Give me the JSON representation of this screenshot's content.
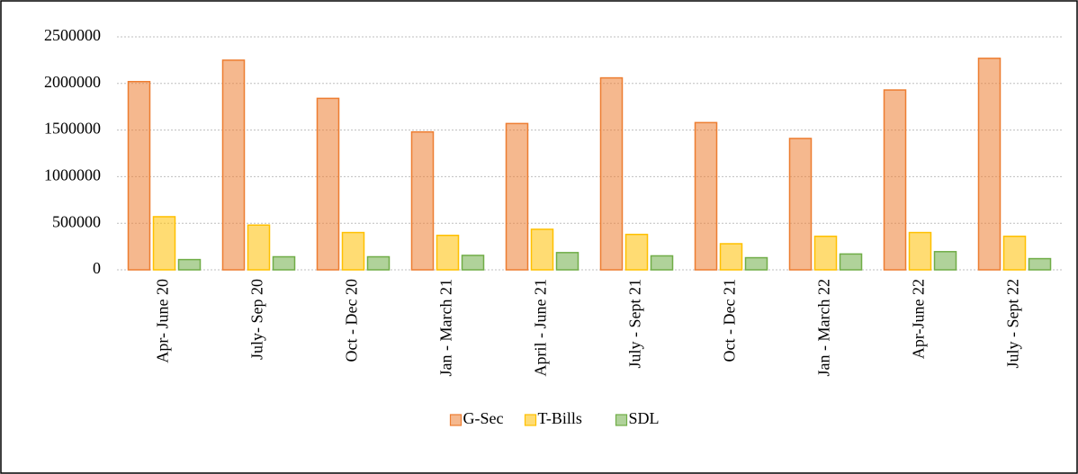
{
  "chart_data": {
    "type": "bar",
    "categories": [
      "Apr- June 20",
      "July- Sep 20",
      "Oct - Dec 20",
      "Jan - March 21",
      "April - June 21",
      "July - Sept 21",
      "Oct - Dec 21",
      "Jan - March 22",
      "Apr-June 22",
      "July - Sept 22"
    ],
    "series": [
      {
        "name": "G-Sec",
        "color": "#ed7d31",
        "values": [
          2020000,
          2250000,
          1840000,
          1480000,
          1570000,
          2060000,
          1580000,
          1410000,
          1930000,
          2270000
        ]
      },
      {
        "name": "T-Bills",
        "color": "#ffc000",
        "values": [
          570000,
          480000,
          400000,
          370000,
          435000,
          380000,
          280000,
          360000,
          400000,
          360000
        ]
      },
      {
        "name": "SDL",
        "color": "#70ad47",
        "values": [
          110000,
          140000,
          140000,
          155000,
          185000,
          150000,
          130000,
          170000,
          195000,
          120000
        ]
      }
    ],
    "ylim": [
      0,
      2500000
    ],
    "yticks": [
      0,
      500000,
      1000000,
      1500000,
      2000000,
      2500000
    ],
    "grid": true,
    "legend": "bottom"
  }
}
